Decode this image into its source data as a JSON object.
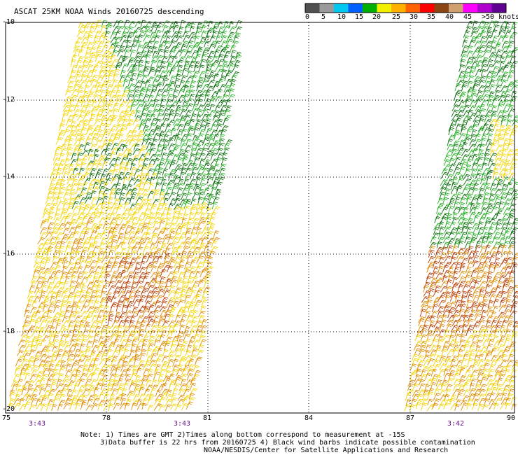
{
  "title": "ASCAT 25KM NOAA Winds 20160725 descending",
  "legend": {
    "labels": [
      "0",
      "5",
      "10",
      "15",
      "20",
      "25",
      "30",
      "35",
      "40",
      "45",
      ">50 knots"
    ],
    "colors": [
      "#505050",
      "#9a9a9a",
      "#00c8f0",
      "#0060ff",
      "#00b000",
      "#f0f000",
      "#ffb000",
      "#ff6000",
      "#ff0000",
      "#8b4513",
      "#d0a070",
      "#ff00ff",
      "#b000d0",
      "#600090"
    ]
  },
  "map": {
    "lat_labels": [
      "-10",
      "-12",
      "-14",
      "-16",
      "-18",
      "-20"
    ],
    "lon_labels": [
      "75",
      "78",
      "81",
      "84",
      "87",
      "90"
    ],
    "time_labels": [
      "3:43",
      "3:43",
      "3:42"
    ]
  },
  "notes": {
    "line1": "Note: 1) Times are GMT 2)Times along bottom correspond to measurement at -15S",
    "line2": "3)Data buffer is 22 hrs from 20160725 4) Black wind barbs indicate possible contamination",
    "line3": "NOAA/NESDIS/Center for Satellite Applications and Research"
  },
  "barb_colors": {
    "green_dark": "#0a6e0a",
    "green": "#22b022",
    "yellow": "#f2d400",
    "orange": "#e08a00",
    "red": "#b83a00"
  }
}
